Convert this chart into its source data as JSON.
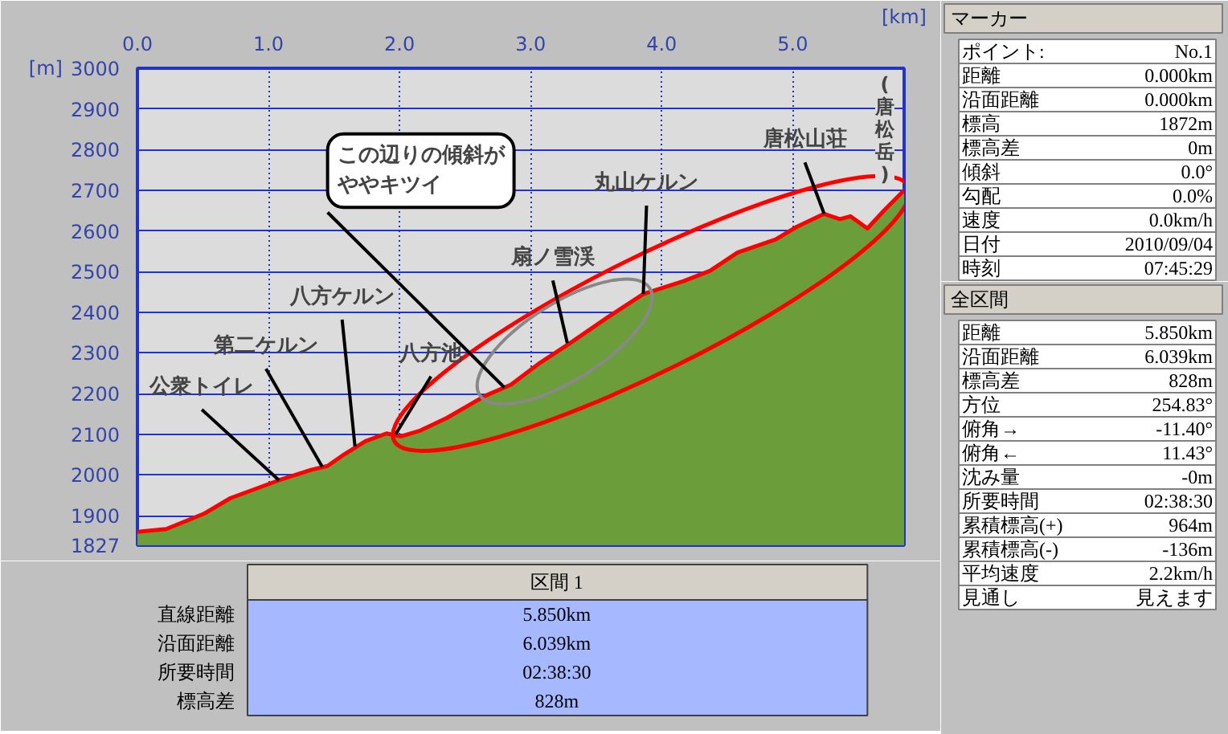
{
  "chart_data": [
    {
      "type": "area",
      "xlabel": "[km]",
      "ylabel": "[m]",
      "grid": true,
      "x": [
        0,
        0.22,
        0.51,
        0.71,
        1.08,
        1.33,
        1.45,
        1.58,
        1.74,
        1.9,
        2.01,
        2.15,
        2.36,
        2.65,
        2.85,
        3.06,
        3.3,
        3.59,
        3.86,
        4.17,
        4.37,
        4.58,
        4.87,
        5.03,
        5.24,
        5.36,
        5.44,
        5.57,
        5.69,
        5.85
      ],
      "series": [
        {
          "type": "area",
          "color": "#6b9e3a",
          "values": [
            1860,
            1867,
            1905,
            1943,
            1987,
            2013,
            2022,
            2051,
            2083,
            2102,
            2095,
            2108,
            2140,
            2194,
            2222,
            2273,
            2324,
            2388,
            2445,
            2477,
            2502,
            2547,
            2579,
            2610,
            2642,
            2629,
            2636,
            2606,
            2648,
            2700
          ]
        },
        {
          "type": "line",
          "color": "#ff0000",
          "values": [
            1860,
            1867,
            1905,
            1943,
            1987,
            2013,
            2022,
            2051,
            2083,
            2102,
            2095,
            2108,
            2140,
            2194,
            2222,
            2273,
            2324,
            2388,
            2445,
            2477,
            2502,
            2547,
            2579,
            2610,
            2642,
            2629,
            2636,
            2606,
            2648,
            2700
          ]
        }
      ],
      "xlim": [
        0,
        5.85
      ],
      "ylim": [
        1827,
        3000
      ],
      "xticks": [
        {
          "value": 0,
          "label": "0.0"
        },
        {
          "value": 1,
          "label": "1.0"
        },
        {
          "value": 2,
          "label": "2.0"
        },
        {
          "value": 3,
          "label": "3.0"
        },
        {
          "value": 4,
          "label": "4.0"
        },
        {
          "value": 5,
          "label": "5.0"
        }
      ],
      "yticks": [
        1827,
        1900,
        2000,
        2100,
        2200,
        2300,
        2400,
        2500,
        2600,
        2700,
        2800,
        2900,
        3000
      ],
      "annotations": [
        {
          "text": "公衆トイレ",
          "x": 1.08,
          "y": 1987
        },
        {
          "text": "第二ケルン",
          "x": 1.41,
          "y": 2020
        },
        {
          "text": "八方ケルン",
          "x": 1.66,
          "y": 2070
        },
        {
          "text": "八方池",
          "x": 1.97,
          "y": 2100
        },
        {
          "text": "この辺りの傾斜がややキツイ",
          "x": 2.8,
          "y": 2215
        },
        {
          "text": "扇ノ雪渓",
          "x": 3.28,
          "y": 2324
        },
        {
          "text": "丸山ケルン",
          "x": 3.86,
          "y": 2445
        },
        {
          "text": "唐松山荘",
          "x": 5.24,
          "y": 2642
        },
        {
          "text": "(唐松岳)",
          "x": 5.85,
          "y": 2700
        }
      ]
    },
    {
      "type": "other",
      "title": "マーカー",
      "annotations": [
        "ポイント:",
        "No.1",
        "距離",
        "0.000km",
        "沿面距離",
        "0.000km",
        "標高",
        "1872m",
        "標高差",
        "0m",
        "傾斜",
        "0.0°",
        "勾配",
        "0.0%",
        "速度",
        "0.0km/h",
        "日付",
        "2010/09/04",
        "時刻",
        "07:45:29"
      ]
    },
    {
      "type": "other",
      "title": "全区間",
      "annotations": [
        "距離",
        "5.850km",
        "沿面距離",
        "6.039km",
        "標高差",
        "828m",
        "方位",
        "254.83°",
        "俯角→",
        "-11.40°",
        "俯角←",
        "11.43°",
        "沈み量",
        "-0m",
        "所要時間",
        "02:38:30",
        "累積標高(+)",
        "964m",
        "累積標高(-)",
        "-136m",
        "平均速度",
        "2.2km/h",
        "見通し",
        "見えます"
      ]
    },
    {
      "type": "other",
      "title": "区間 1",
      "annotations": [
        "直線距離",
        "5.850km",
        "沿面距離",
        "6.039km",
        "所要時間",
        "02:38:30",
        "標高差",
        "828m"
      ]
    }
  ]
}
